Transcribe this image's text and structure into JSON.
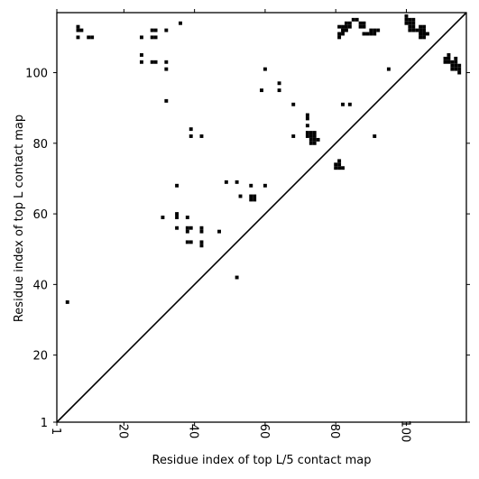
{
  "chart_data": {
    "type": "scatter",
    "title": "",
    "xlabel": "Residue index of top L/5 contact map",
    "ylabel": "Residue index of top L contact map",
    "xlim": [
      1,
      117
    ],
    "ylim": [
      1,
      117
    ],
    "x_ticks": [
      1,
      20,
      40,
      60,
      80,
      100
    ],
    "y_ticks": [
      1,
      20,
      40,
      60,
      80,
      100
    ],
    "x_tick_labels": [
      "1",
      "20",
      "40",
      "60",
      "80",
      "100"
    ],
    "y_tick_labels": [
      "1",
      "20",
      "40",
      "60",
      "80",
      "100"
    ],
    "grid": false,
    "diagonal": true,
    "marker_color": "#000000",
    "series": [
      {
        "points": [
          [
            4,
            35
          ],
          [
            7,
            110
          ],
          [
            7,
            112
          ],
          [
            7,
            113
          ],
          [
            8,
            112
          ],
          [
            10,
            110
          ],
          [
            11,
            110
          ],
          [
            25,
            103
          ],
          [
            25,
            105
          ],
          [
            25,
            110
          ],
          [
            28,
            103
          ],
          [
            28,
            110
          ],
          [
            28,
            112
          ],
          [
            29,
            103
          ],
          [
            29,
            110
          ],
          [
            29,
            112
          ],
          [
            31,
            59
          ],
          [
            32,
            92
          ],
          [
            32,
            101
          ],
          [
            32,
            103
          ],
          [
            32,
            112
          ],
          [
            35,
            56
          ],
          [
            35,
            59
          ],
          [
            35,
            60
          ],
          [
            35,
            68
          ],
          [
            36,
            114
          ],
          [
            38,
            52
          ],
          [
            38,
            55
          ],
          [
            38,
            56
          ],
          [
            38,
            59
          ],
          [
            39,
            52
          ],
          [
            39,
            56
          ],
          [
            39,
            82
          ],
          [
            39,
            84
          ],
          [
            42,
            51
          ],
          [
            42,
            52
          ],
          [
            42,
            55
          ],
          [
            42,
            56
          ],
          [
            42,
            82
          ],
          [
            47,
            55
          ],
          [
            49,
            69
          ],
          [
            52,
            42
          ],
          [
            52,
            69
          ],
          [
            53,
            65
          ],
          [
            56,
            64
          ],
          [
            56,
            65
          ],
          [
            56,
            68
          ],
          [
            57,
            64
          ],
          [
            57,
            65
          ],
          [
            59,
            95
          ],
          [
            60,
            68
          ],
          [
            60,
            101
          ],
          [
            64,
            95
          ],
          [
            64,
            97
          ],
          [
            68,
            82
          ],
          [
            68,
            91
          ],
          [
            72,
            82
          ],
          [
            72,
            83
          ],
          [
            72,
            85
          ],
          [
            72,
            87
          ],
          [
            72,
            88
          ],
          [
            73,
            80
          ],
          [
            73,
            81
          ],
          [
            73,
            82
          ],
          [
            73,
            83
          ],
          [
            74,
            80
          ],
          [
            74,
            81
          ],
          [
            74,
            82
          ],
          [
            74,
            83
          ],
          [
            75,
            81
          ],
          [
            80,
            73
          ],
          [
            80,
            74
          ],
          [
            81,
            73
          ],
          [
            81,
            74
          ],
          [
            81,
            75
          ],
          [
            82,
            73
          ],
          [
            81,
            110
          ],
          [
            81,
            111
          ],
          [
            81,
            113
          ],
          [
            82,
            91
          ],
          [
            82,
            111
          ],
          [
            82,
            112
          ],
          [
            82,
            113
          ],
          [
            83,
            112
          ],
          [
            83,
            113
          ],
          [
            83,
            114
          ],
          [
            84,
            91
          ],
          [
            84,
            113
          ],
          [
            84,
            114
          ],
          [
            85,
            115
          ],
          [
            86,
            115
          ],
          [
            87,
            113
          ],
          [
            87,
            114
          ],
          [
            88,
            111
          ],
          [
            88,
            113
          ],
          [
            88,
            114
          ],
          [
            89,
            111
          ],
          [
            90,
            111
          ],
          [
            90,
            112
          ],
          [
            91,
            82
          ],
          [
            91,
            111
          ],
          [
            91,
            112
          ],
          [
            92,
            112
          ],
          [
            95,
            101
          ],
          [
            100,
            114
          ],
          [
            100,
            115
          ],
          [
            100,
            116
          ],
          [
            101,
            112
          ],
          [
            101,
            113
          ],
          [
            101,
            114
          ],
          [
            101,
            115
          ],
          [
            102,
            112
          ],
          [
            102,
            113
          ],
          [
            102,
            114
          ],
          [
            102,
            115
          ],
          [
            103,
            112
          ],
          [
            104,
            110
          ],
          [
            104,
            111
          ],
          [
            104,
            112
          ],
          [
            104,
            113
          ],
          [
            105,
            110
          ],
          [
            105,
            111
          ],
          [
            105,
            112
          ],
          [
            105,
            113
          ],
          [
            106,
            111
          ],
          [
            111,
            103
          ],
          [
            111,
            104
          ],
          [
            112,
            103
          ],
          [
            112,
            104
          ],
          [
            112,
            105
          ],
          [
            113,
            101
          ],
          [
            113,
            102
          ],
          [
            113,
            103
          ],
          [
            114,
            101
          ],
          [
            114,
            102
          ],
          [
            114,
            103
          ],
          [
            114,
            104
          ],
          [
            115,
            100
          ],
          [
            115,
            101
          ],
          [
            115,
            102
          ]
        ]
      }
    ]
  }
}
